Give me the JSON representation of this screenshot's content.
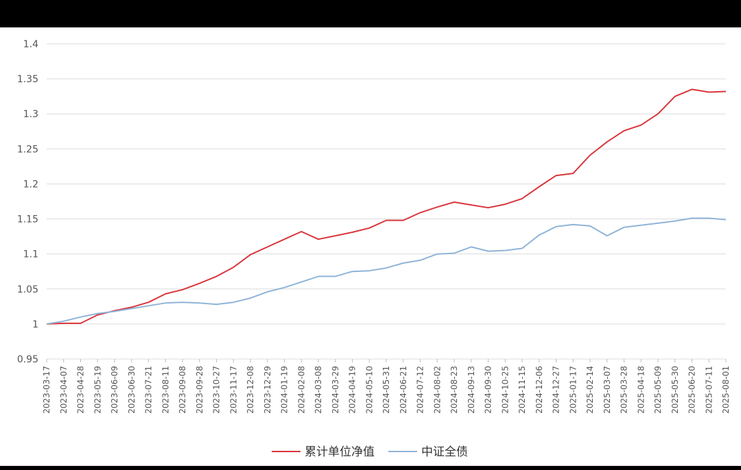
{
  "chart_data": {
    "type": "line",
    "title": "",
    "xlabel": "",
    "ylabel": "",
    "ylim": [
      0.95,
      1.4
    ],
    "yticks": [
      "0.95",
      "1",
      "1.05",
      "1.1",
      "1.15",
      "1.2",
      "1.25",
      "1.3",
      "1.35",
      "1.4"
    ],
    "grid": "horizontal",
    "legend_position": "bottom",
    "x_tick_labels": [
      "2023-03-17",
      "2023-04-07",
      "2023-04-28",
      "2023-05-19",
      "2023-06-09",
      "2023-06-30",
      "2023-07-21",
      "2023-08-11",
      "2023-09-08",
      "2023-09-28",
      "2023-10-27",
      "2023-11-17",
      "2023-12-08",
      "2023-12-29",
      "2024-01-19",
      "2024-02-08",
      "2024-03-08",
      "2024-03-29",
      "2024-04-19",
      "2024-05-10",
      "2024-05-31",
      "2024-06-21",
      "2024-07-12",
      "2024-08-02",
      "2024-08-23",
      "2024-09-13",
      "2024-09-30",
      "2024-10-25",
      "2024-11-15",
      "2024-12-06",
      "2024-12-27",
      "2025-01-17",
      "2025-02-14",
      "2025-03-07",
      "2025-03-28",
      "2025-04-18",
      "2025-05-09",
      "2025-05-30",
      "2025-06-20",
      "2025-07-11",
      "2025-08-01"
    ],
    "series": [
      {
        "name": "累计单位净值",
        "color": "#d9353b",
        "values": [
          1.0,
          1.001,
          1.001,
          1.013,
          1.019,
          1.024,
          1.031,
          1.043,
          1.049,
          1.058,
          1.068,
          1.081,
          1.099,
          1.11,
          1.121,
          1.132,
          1.121,
          1.126,
          1.131,
          1.137,
          1.148,
          1.148,
          1.159,
          1.167,
          1.174,
          1.17,
          1.166,
          1.171,
          1.179,
          1.196,
          1.212,
          1.215,
          1.241,
          1.26,
          1.276,
          1.284,
          1.3,
          1.325,
          1.335,
          1.331,
          1.332
        ]
      },
      {
        "name": "中证全债",
        "color": "#8fb4d8",
        "values": [
          1.0,
          1.004,
          1.01,
          1.015,
          1.018,
          1.022,
          1.026,
          1.03,
          1.031,
          1.03,
          1.028,
          1.031,
          1.037,
          1.046,
          1.052,
          1.06,
          1.068,
          1.068,
          1.075,
          1.076,
          1.08,
          1.087,
          1.091,
          1.1,
          1.101,
          1.11,
          1.104,
          1.105,
          1.108,
          1.127,
          1.139,
          1.142,
          1.14,
          1.126,
          1.138,
          1.141,
          1.144,
          1.147,
          1.151,
          1.151,
          1.149
        ]
      }
    ]
  }
}
